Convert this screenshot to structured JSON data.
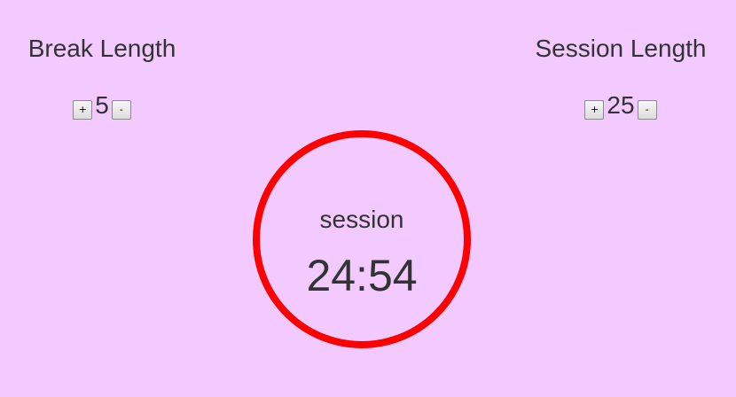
{
  "break": {
    "title": "Break Length",
    "increment_label": "+",
    "value": "5",
    "decrement_label": "-"
  },
  "session": {
    "title": "Session Length",
    "increment_label": "+",
    "value": "25",
    "decrement_label": "-"
  },
  "timer": {
    "mode": "session",
    "time": "24:54",
    "ring_color": "#ff0000"
  },
  "theme": {
    "background": "#f2caff",
    "text": "#333333"
  }
}
